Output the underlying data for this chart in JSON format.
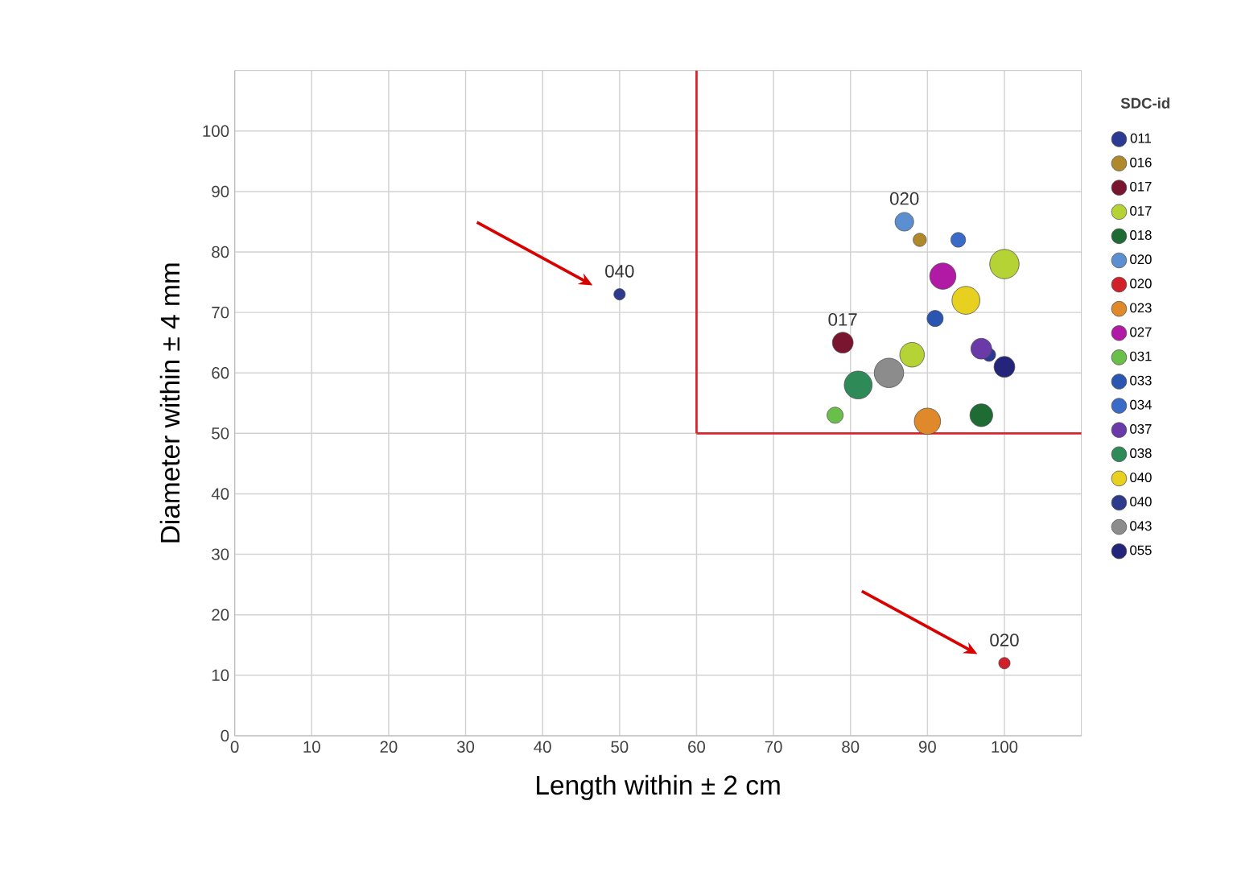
{
  "chart_data": {
    "type": "bubble",
    "xlabel": "Length within ± 2 cm",
    "ylabel": "Diameter within ± 4 mm",
    "legend_title": "SDC-id",
    "legend": "right",
    "grid": true,
    "marker": "circle",
    "xlim": [
      0,
      110
    ],
    "ylim": [
      0,
      110
    ],
    "xticks": [
      0,
      10,
      20,
      30,
      40,
      50,
      60,
      70,
      80,
      90,
      100
    ],
    "yticks": [
      0,
      10,
      20,
      30,
      40,
      50,
      60,
      70,
      80,
      90,
      100
    ],
    "ref_lines": [
      {
        "axis": "x",
        "value": 60,
        "color": "#d9262c"
      },
      {
        "axis": "y",
        "value": 50,
        "color": "#d9262c"
      }
    ],
    "annotations": [
      {
        "text": "040",
        "x": 50,
        "y": 73
      },
      {
        "text": "020",
        "x": 100,
        "y": 12
      },
      {
        "text": "017",
        "x": 79,
        "y": 65
      },
      {
        "text": "020",
        "x": 87,
        "y": 85
      }
    ],
    "series": [
      {
        "name": "011",
        "color": "#2b3a93",
        "x": [
          98
        ],
        "values": [
          63
        ],
        "sizes": [
          0.2
        ]
      },
      {
        "name": "016",
        "color": "#b08a2a",
        "x": [
          89
        ],
        "values": [
          82
        ],
        "sizes": [
          0.2
        ]
      },
      {
        "name": "017",
        "color": "#7a1530",
        "x": [
          79
        ],
        "values": [
          65
        ],
        "sizes": [
          0.5
        ]
      },
      {
        "name": "017",
        "color": "#b5d334",
        "x": [
          88,
          100
        ],
        "values": [
          63,
          78
        ],
        "sizes": [
          0.7,
          1
        ]
      },
      {
        "name": "018",
        "color": "#1e6b34",
        "x": [
          97
        ],
        "values": [
          53
        ],
        "sizes": [
          0.6
        ]
      },
      {
        "name": "020",
        "color": "#5b8fd0",
        "x": [
          87
        ],
        "values": [
          85
        ],
        "sizes": [
          0.4
        ]
      },
      {
        "name": "020",
        "color": "#d0202a",
        "x": [
          100
        ],
        "values": [
          12
        ],
        "sizes": [
          0.15
        ]
      },
      {
        "name": "023",
        "color": "#e0892a",
        "x": [
          90
        ],
        "values": [
          52
        ],
        "sizes": [
          0.8
        ]
      },
      {
        "name": "027",
        "color": "#b01aa5",
        "x": [
          92
        ],
        "values": [
          76
        ],
        "sizes": [
          0.8
        ]
      },
      {
        "name": "031",
        "color": "#6abf4b",
        "x": [
          78
        ],
        "values": [
          53
        ],
        "sizes": [
          0.3
        ]
      },
      {
        "name": "033",
        "color": "#2a55b0",
        "x": [
          91
        ],
        "values": [
          69
        ],
        "sizes": [
          0.3
        ]
      },
      {
        "name": "034",
        "color": "#3a6bc8",
        "x": [
          94
        ],
        "values": [
          82
        ],
        "sizes": [
          0.25
        ]
      },
      {
        "name": "037",
        "color": "#6a3aa8",
        "x": [
          97
        ],
        "values": [
          64
        ],
        "sizes": [
          0.5
        ]
      },
      {
        "name": "038",
        "color": "#2e8b57",
        "x": [
          81
        ],
        "values": [
          58
        ],
        "sizes": [
          0.9
        ]
      },
      {
        "name": "040",
        "color": "#e8d020",
        "x": [
          95
        ],
        "values": [
          72
        ],
        "sizes": [
          0.9
        ]
      },
      {
        "name": "040",
        "color": "#2e3a8c",
        "x": [
          50
        ],
        "values": [
          73
        ],
        "sizes": [
          0.15
        ]
      },
      {
        "name": "043",
        "color": "#8c8c8c",
        "x": [
          85
        ],
        "values": [
          60
        ],
        "sizes": [
          1
        ]
      },
      {
        "name": "055",
        "color": "#24247a",
        "x": [
          100
        ],
        "values": [
          61
        ],
        "sizes": [
          0.5
        ]
      }
    ]
  }
}
